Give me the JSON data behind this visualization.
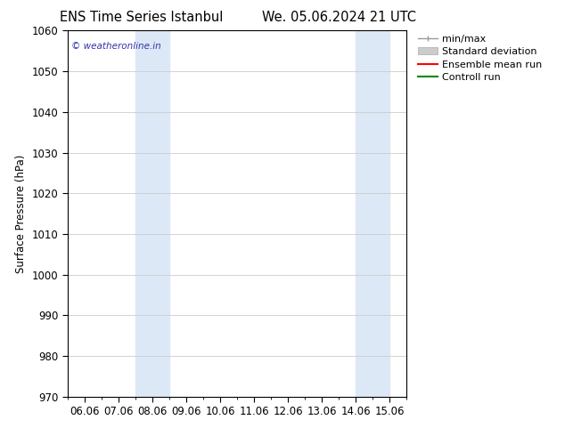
{
  "title_left": "ENS Time Series Istanbul",
  "title_right": "We. 05.06.2024 21 UTC",
  "ylabel": "Surface Pressure (hPa)",
  "ylim": [
    970,
    1060
  ],
  "yticks": [
    970,
    980,
    990,
    1000,
    1010,
    1020,
    1030,
    1040,
    1050,
    1060
  ],
  "xtick_labels": [
    "06.06",
    "07.06",
    "08.06",
    "09.06",
    "10.06",
    "11.06",
    "12.06",
    "13.06",
    "14.06",
    "15.06"
  ],
  "n_xticks": 10,
  "xlim": [
    0,
    9
  ],
  "shaded_bands": [
    {
      "xmin": 2.0,
      "xmax": 2.5,
      "color": "#dce8f5"
    },
    {
      "xmin": 2.5,
      "xmax": 3.0,
      "color": "#dce8f5"
    },
    {
      "xmin": 8.5,
      "xmax": 9.0,
      "color": "#dce8f5"
    },
    {
      "xmin": 9.0,
      "xmax": 9.5,
      "color": "#dce8f5"
    }
  ],
  "watermark": "© weatheronline.in",
  "watermark_color": "#3333aa",
  "background_color": "#ffffff",
  "grid_color": "#cccccc",
  "font_size": 8.5,
  "title_font_size": 10.5,
  "legend_font_size": 8,
  "minmax_color": "#999999",
  "stddev_color": "#cccccc",
  "stddev_edge_color": "#aaaaaa",
  "ensemble_color": "#ff0000",
  "control_color": "#008800"
}
